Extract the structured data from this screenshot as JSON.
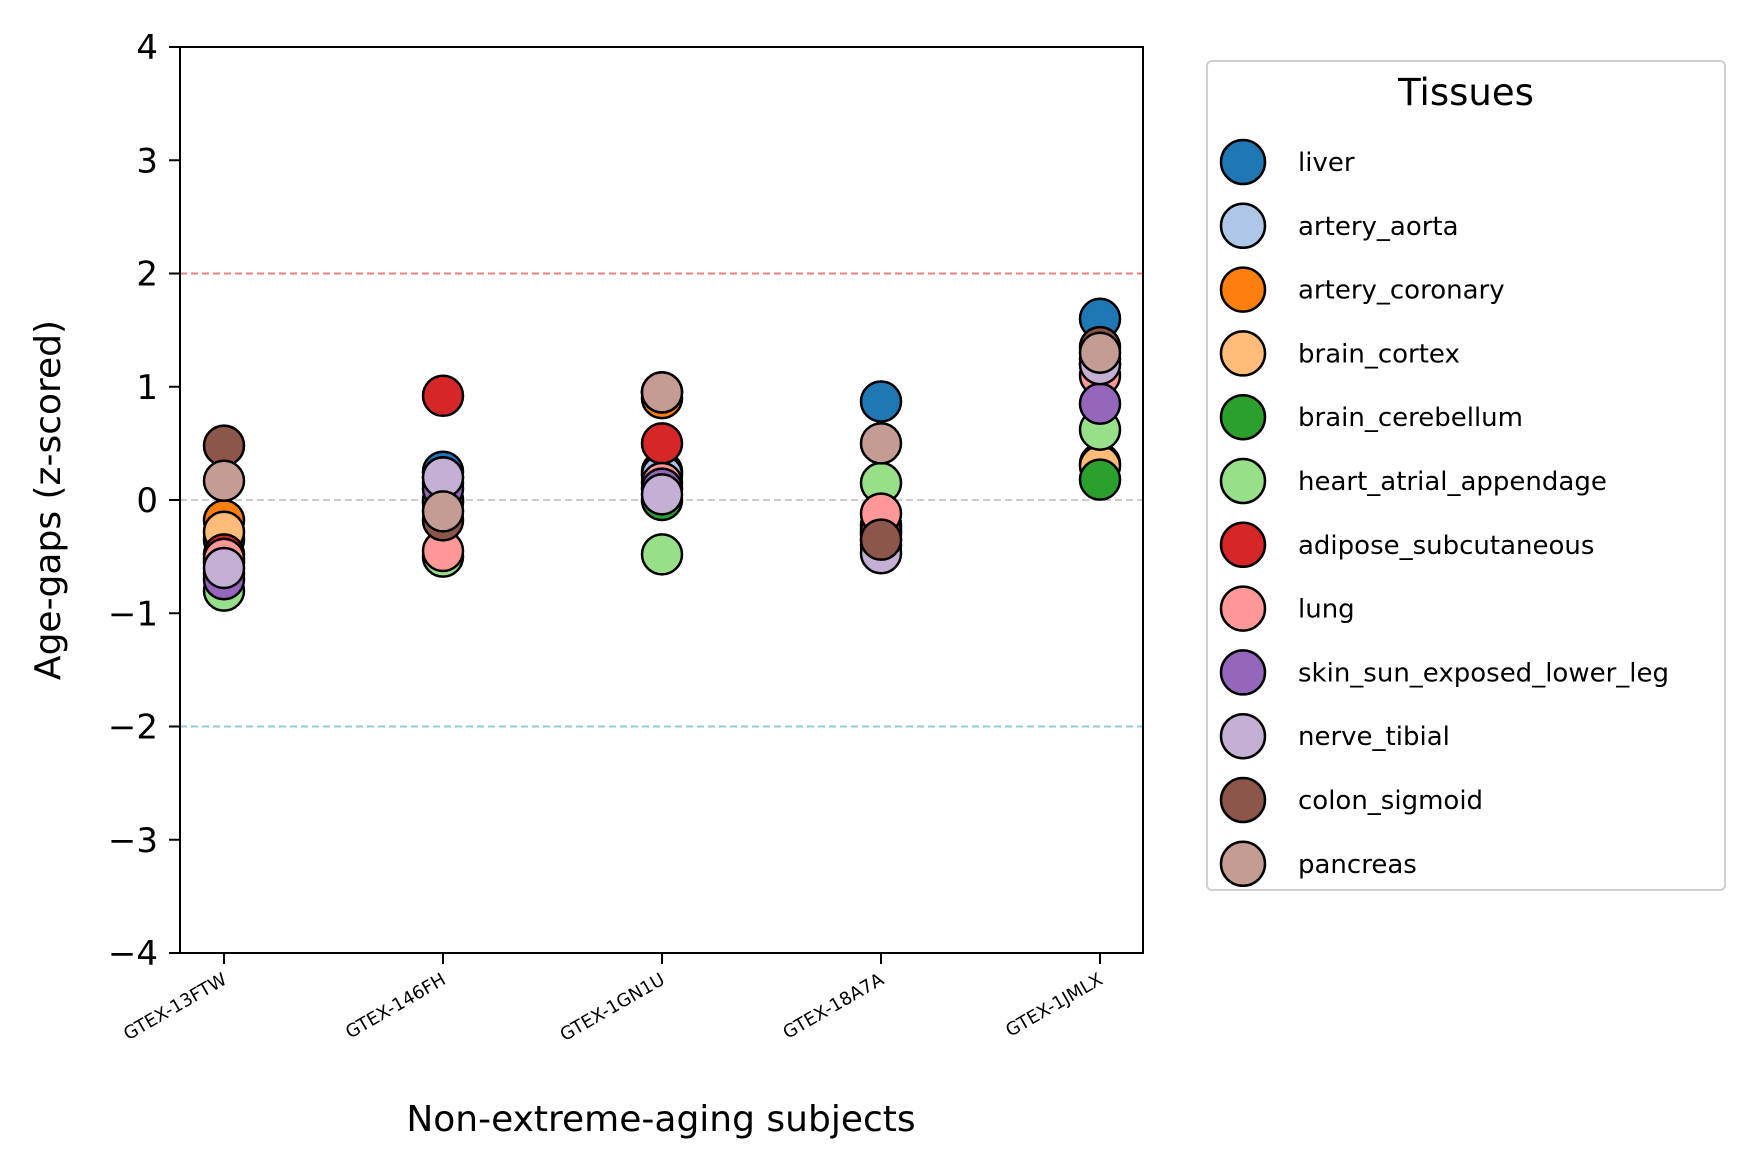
{
  "chart_data": {
    "type": "scatter",
    "title": "",
    "xlabel": "Non-extreme-aging subjects",
    "ylabel": "Age-gaps (z-scored)",
    "ylim": [
      -4,
      4
    ],
    "yticks": [
      -4,
      -3,
      -2,
      -1,
      0,
      1,
      2,
      3,
      4
    ],
    "ytick_labels": [
      "−4",
      "−3",
      "−2",
      "−1",
      "0",
      "1",
      "2",
      "3",
      "4"
    ],
    "categories": [
      "GTEX-13FTW",
      "GTEX-146FH",
      "GTEX-1GN1U",
      "GTEX-18A7A",
      "GTEX-1JMLX"
    ],
    "reference_lines": [
      {
        "y": 2,
        "color": "#e88080",
        "style": "dashed"
      },
      {
        "y": 0,
        "color": "#cccccc",
        "style": "dashed"
      },
      {
        "y": -2,
        "color": "#90ccd8",
        "style": "dashed"
      }
    ],
    "grid": false,
    "legend": {
      "title": "Tissues",
      "placement": "outside-right"
    },
    "series": [
      {
        "name": "liver",
        "color": "#1f77b4",
        "values": [
          -0.35,
          0.25,
          0.25,
          0.87,
          1.6
        ]
      },
      {
        "name": "artery_aorta",
        "color": "#aec7e8",
        "values": [
          -0.65,
          0.2,
          0.22,
          -0.35,
          1.25
        ]
      },
      {
        "name": "artery_coronary",
        "color": "#ff7f0e",
        "values": [
          -0.18,
          0.0,
          0.9,
          -0.22,
          0.32
        ]
      },
      {
        "name": "brain_cortex",
        "color": "#ffbb78",
        "values": [
          -0.28,
          -0.02,
          0.95,
          -0.25,
          0.3
        ]
      },
      {
        "name": "brain_cerebellum",
        "color": "#2ca02c",
        "values": [
          -0.55,
          0.15,
          0.0,
          -0.3,
          0.18
        ]
      },
      {
        "name": "heart_atrial_appendage",
        "color": "#98df8a",
        "values": [
          -0.8,
          -0.5,
          -0.48,
          0.15,
          0.62
        ]
      },
      {
        "name": "adipose_subcutaneous",
        "color": "#d62728",
        "values": [
          -0.48,
          0.92,
          0.5,
          -0.28,
          1.2
        ]
      },
      {
        "name": "lung",
        "color": "#ff9896",
        "values": [
          -0.52,
          -0.45,
          0.15,
          -0.12,
          1.1
        ]
      },
      {
        "name": "skin_sun_exposed_lower_leg",
        "color": "#9467bd",
        "values": [
          -0.7,
          0.1,
          0.1,
          -0.4,
          0.85
        ]
      },
      {
        "name": "nerve_tibial",
        "color": "#c5b0d5",
        "values": [
          -0.6,
          0.2,
          0.05,
          -0.47,
          1.2
        ]
      },
      {
        "name": "colon_sigmoid",
        "color": "#8c564b",
        "values": [
          0.48,
          -0.18,
          0.95,
          -0.35,
          1.35
        ]
      },
      {
        "name": "pancreas",
        "color": "#c49c94",
        "values": [
          0.17,
          -0.1,
          0.95,
          0.5,
          1.3
        ]
      }
    ]
  }
}
